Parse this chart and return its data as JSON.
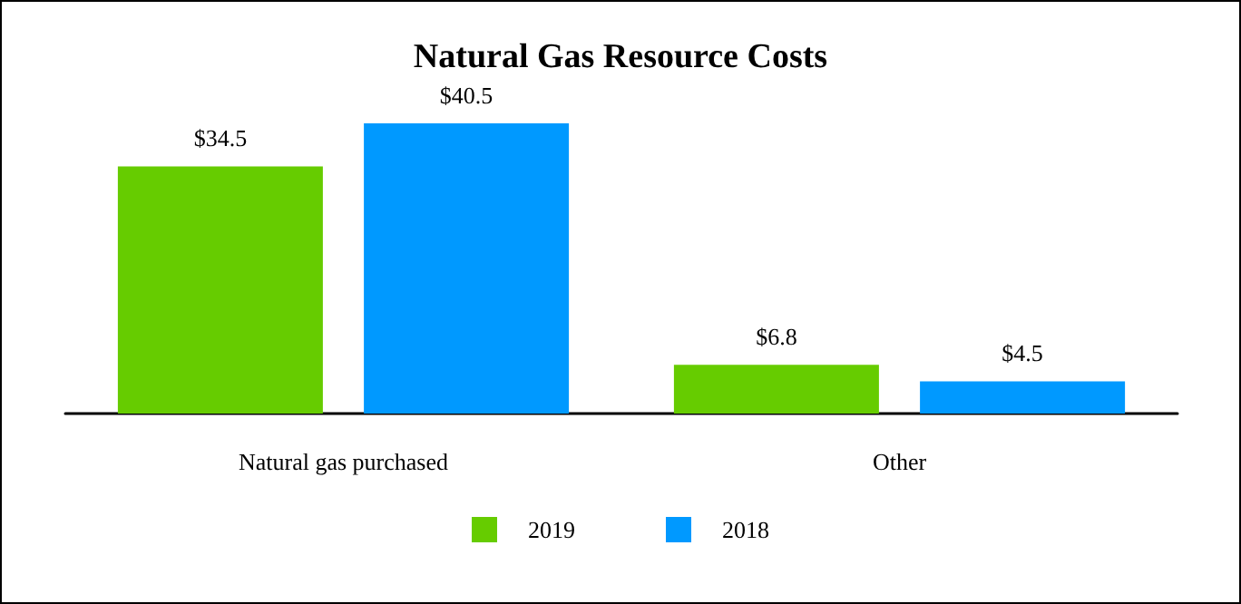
{
  "chart_data": {
    "type": "bar",
    "title": "Natural Gas Resource Costs",
    "categories": [
      "Natural gas purchased",
      "Other"
    ],
    "series": [
      {
        "name": "2019",
        "color": "#66cc00",
        "values": [
          34.5,
          6.8
        ],
        "value_labels": [
          "$34.5",
          "$6.8"
        ]
      },
      {
        "name": "2018",
        "color": "#0099ff",
        "values": [
          40.5,
          4.5
        ],
        "value_labels": [
          "$40.5",
          "$4.5"
        ]
      }
    ],
    "legend": "bottom"
  }
}
